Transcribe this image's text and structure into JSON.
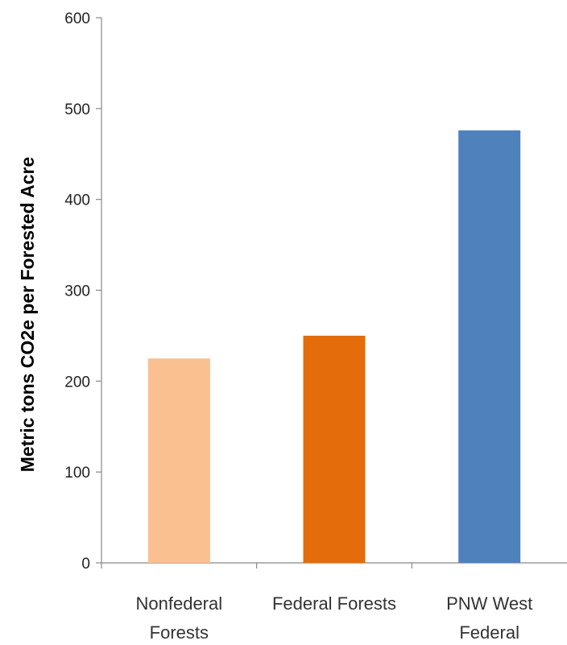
{
  "chart_data": {
    "type": "bar",
    "title": "",
    "xlabel": "",
    "ylabel": "Metric tons  CO2e per Forested  Acre",
    "ylim": [
      0,
      600
    ],
    "yticks": [
      0,
      100,
      200,
      300,
      400,
      500,
      600
    ],
    "grid": false,
    "legend": "none",
    "categories": [
      [
        "Nonfederal",
        "Forests"
      ],
      [
        "Federal Forests"
      ],
      [
        "PNW West",
        "Federal"
      ]
    ],
    "values": [
      225,
      250,
      476
    ],
    "colors": [
      "#FAC090",
      "#E46C0A",
      "#4F81BD"
    ]
  }
}
